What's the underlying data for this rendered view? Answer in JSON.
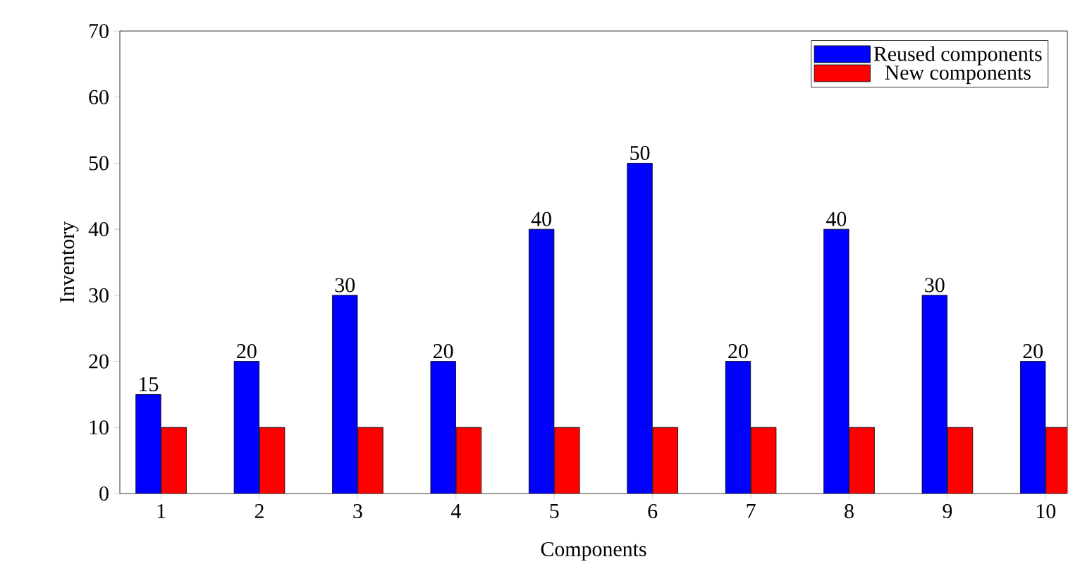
{
  "chart_data": {
    "type": "bar",
    "xlabel": "Components",
    "ylabel": "Inventory",
    "categories": [
      "1",
      "2",
      "3",
      "4",
      "5",
      "6",
      "7",
      "8",
      "9",
      "10"
    ],
    "series": [
      {
        "name": "Reused components",
        "color": "#0000ff",
        "values": [
          15,
          20,
          30,
          20,
          40,
          50,
          20,
          40,
          30,
          20
        ],
        "value_labels": [
          "15",
          "20",
          "30",
          "20",
          "40",
          "50",
          "20",
          "40",
          "30",
          "20"
        ]
      },
      {
        "name": "New components",
        "color": "#ff0000",
        "values": [
          10,
          10,
          10,
          10,
          10,
          10,
          10,
          10,
          10,
          10
        ]
      }
    ],
    "ylim": [
      0,
      70
    ],
    "yticks": [
      0,
      10,
      20,
      30,
      40,
      50,
      60,
      70
    ],
    "legend": "top right"
  }
}
